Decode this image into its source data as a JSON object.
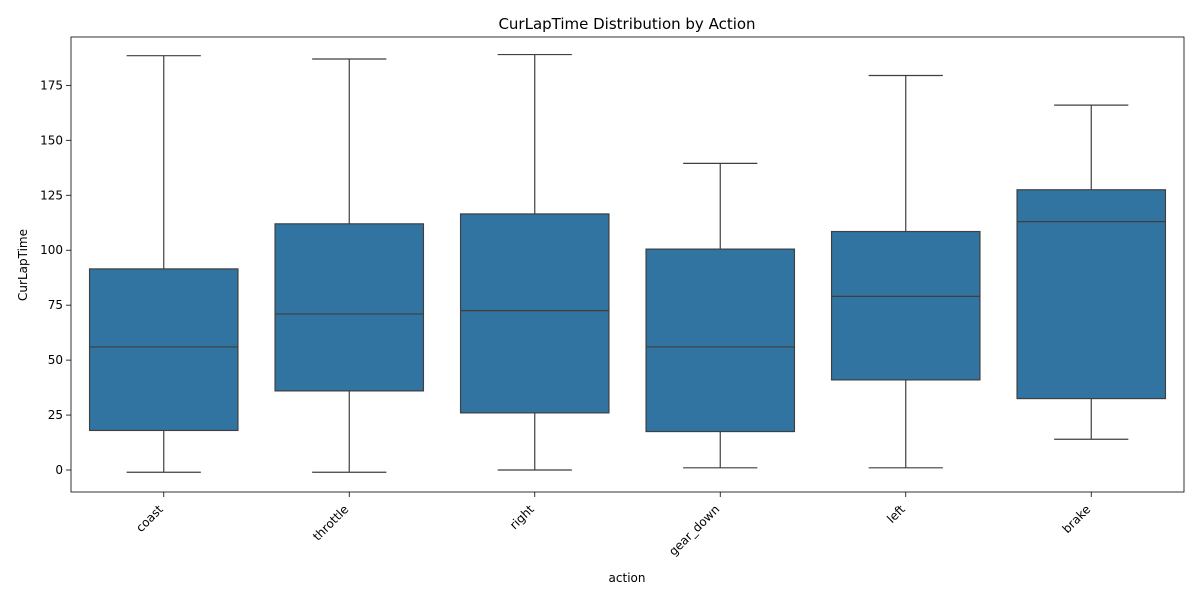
{
  "chart_data": {
    "type": "box",
    "title": "CurLapTime Distribution by Action",
    "xlabel": "action",
    "ylabel": "CurLapTime",
    "ylim": [
      -10,
      197
    ],
    "yticks": [
      0,
      25,
      50,
      75,
      100,
      125,
      150,
      175
    ],
    "grid": false,
    "legend": "none",
    "box_color": "#3274a1",
    "line_color": "#3f3f3f",
    "categories": [
      "coast",
      "throttle",
      "right",
      "gear_down",
      "left",
      "brake"
    ],
    "boxes": [
      {
        "category": "coast",
        "whisker_low": -1,
        "q1": 18,
        "median": 56,
        "q3": 91.5,
        "whisker_high": 188.5
      },
      {
        "category": "throttle",
        "whisker_low": -1,
        "q1": 36,
        "median": 71,
        "q3": 112,
        "whisker_high": 187
      },
      {
        "category": "right",
        "whisker_low": 0,
        "q1": 26,
        "median": 72.5,
        "q3": 116.5,
        "whisker_high": 189
      },
      {
        "category": "gear_down",
        "whisker_low": 1,
        "q1": 17.5,
        "median": 56,
        "q3": 100.5,
        "whisker_high": 139.5
      },
      {
        "category": "left",
        "whisker_low": 1,
        "q1": 41,
        "median": 79,
        "q3": 108.5,
        "whisker_high": 179.5
      },
      {
        "category": "brake",
        "whisker_low": 14,
        "q1": 32.5,
        "median": 113,
        "q3": 127.5,
        "whisker_high": 166
      }
    ]
  }
}
